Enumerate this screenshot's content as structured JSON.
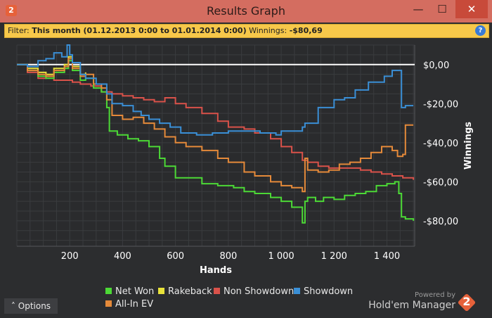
{
  "window": {
    "title": "Results Graph",
    "app_icon": "2",
    "minimize_glyph": "—",
    "maximize_glyph": "☐",
    "close_glyph": "✕"
  },
  "filter": {
    "label": "Filter:",
    "value": "This month (01.12.2013 0:00 to 01.01.2014 0:00)",
    "winnings_label": "Winnings:",
    "winnings_value": "-$80,69",
    "help_glyph": "?"
  },
  "options_button": {
    "glyph": "˄",
    "label": "Options"
  },
  "branding": {
    "powered": "Powered by",
    "name": "Hold'em Manager",
    "logo_number": "2"
  },
  "colors": {
    "net_won": "#4cd936",
    "rakeback": "#e8e23a",
    "non_showdown": "#d9524a",
    "showdown": "#3a8fd6",
    "all_in_ev": "#e58a3a",
    "zero_line": "#ffffff",
    "grid": "#3a3c3f",
    "axis_text": "#ffffff"
  },
  "chart_data": {
    "type": "line",
    "xlabel": "Hands",
    "ylabel": "Winnings",
    "xlim": [
      0,
      1505
    ],
    "ylim": [
      -93,
      10
    ],
    "xticks": [
      200,
      400,
      600,
      800,
      1000,
      1200,
      1400
    ],
    "xtick_labels": [
      "200",
      "400",
      "600",
      "800",
      "1 000",
      "1 200",
      "1 400"
    ],
    "yticks": [
      0,
      -20,
      -40,
      -60,
      -80
    ],
    "ytick_labels": [
      "$0,00",
      "-$20,00",
      "-$40,00",
      "-$60,00",
      "-$80,00"
    ],
    "legend_position": "bottom",
    "series": [
      {
        "name": "Net Won",
        "color_key": "net_won",
        "x": [
          0,
          40,
          80,
          110,
          140,
          180,
          195,
          210,
          240,
          260,
          290,
          320,
          340,
          350,
          380,
          420,
          460,
          500,
          540,
          560,
          600,
          640,
          700,
          760,
          820,
          860,
          900,
          960,
          1000,
          1040,
          1080,
          1090,
          1100,
          1130,
          1160,
          1200,
          1240,
          1280,
          1320,
          1360,
          1400,
          1430,
          1445,
          1455,
          1470,
          1500
        ],
        "y": [
          0,
          -3,
          -6,
          -7,
          -4,
          -2,
          2,
          -3,
          -8,
          -7,
          -12,
          -14,
          -22,
          -34,
          -36,
          -38,
          -39,
          -42,
          -48,
          -52,
          -58,
          -58,
          -61,
          -62,
          -63,
          -65,
          -66,
          -68,
          -70,
          -73,
          -81,
          -70,
          -68,
          -70,
          -68,
          -69,
          -67,
          -66,
          -65,
          -62,
          -61,
          -60,
          -66,
          -78,
          -79,
          -80
        ]
      },
      {
        "name": "Rakeback",
        "color_key": "rakeback",
        "x": [
          0,
          40,
          80,
          110,
          140,
          180,
          195,
          210,
          240,
          260
        ],
        "y": [
          0,
          -2,
          -4,
          -5,
          -2,
          0,
          4,
          -1,
          -5,
          -4
        ]
      },
      {
        "name": "Non Showdown",
        "color_key": "non_showdown",
        "x": [
          0,
          40,
          80,
          110,
          140,
          180,
          210,
          240,
          280,
          320,
          360,
          400,
          440,
          480,
          520,
          560,
          600,
          640,
          700,
          760,
          800,
          860,
          900,
          960,
          1000,
          1040,
          1080,
          1100,
          1140,
          1180,
          1220,
          1260,
          1300,
          1340,
          1380,
          1420,
          1460,
          1500
        ],
        "y": [
          0,
          -4,
          -7,
          -6,
          -8,
          -8,
          -9,
          -10,
          -11,
          -14,
          -15,
          -16,
          -17,
          -18,
          -19,
          -17,
          -20,
          -22,
          -25,
          -29,
          -32,
          -33,
          -35,
          -38,
          -42,
          -45,
          -49,
          -50,
          -52,
          -53,
          -53,
          -53,
          -54,
          -55,
          -56,
          -57,
          -58,
          -59
        ]
      },
      {
        "name": "Showdown",
        "color_key": "showdown",
        "x": [
          0,
          40,
          80,
          110,
          140,
          170,
          190,
          200,
          210,
          240,
          260,
          300,
          340,
          360,
          400,
          440,
          470,
          500,
          540,
          580,
          620,
          680,
          740,
          800,
          860,
          920,
          980,
          1000,
          1040,
          1080,
          1090,
          1100,
          1140,
          1200,
          1240,
          1280,
          1310,
          1330,
          1360,
          1390,
          1420,
          1440,
          1455,
          1470,
          1500
        ],
        "y": [
          0,
          -1,
          2,
          3,
          6,
          4,
          10,
          5,
          1,
          -5,
          -7,
          -10,
          -15,
          -20,
          -21,
          -24,
          -26,
          -28,
          -30,
          -32,
          -35,
          -36,
          -35,
          -34,
          -34,
          -35,
          -36,
          -34,
          -34,
          -32,
          -30,
          -30,
          -22,
          -18,
          -17,
          -13,
          -13,
          -9,
          -9,
          -6,
          -3,
          -3,
          -22,
          -21,
          -21
        ]
      },
      {
        "name": "All-In EV",
        "color_key": "all_in_ev",
        "x": [
          0,
          40,
          80,
          110,
          140,
          180,
          195,
          210,
          240,
          260,
          290,
          320,
          340,
          360,
          400,
          440,
          480,
          520,
          560,
          600,
          640,
          700,
          760,
          800,
          860,
          900,
          960,
          1000,
          1040,
          1080,
          1090,
          1100,
          1140,
          1180,
          1220,
          1260,
          1300,
          1340,
          1380,
          1420,
          1440,
          1460,
          1470,
          1500
        ],
        "y": [
          0,
          -3,
          -5,
          -6,
          -3,
          -1,
          3,
          -2,
          -6,
          -5,
          -10,
          -12,
          -18,
          -26,
          -28,
          -27,
          -30,
          -33,
          -37,
          -40,
          -42,
          -44,
          -48,
          -50,
          -55,
          -57,
          -60,
          -62,
          -63,
          -65,
          -48,
          -54,
          -55,
          -54,
          -51,
          -50,
          -48,
          -45,
          -42,
          -44,
          -47,
          -46,
          -31,
          -31
        ]
      }
    ]
  }
}
